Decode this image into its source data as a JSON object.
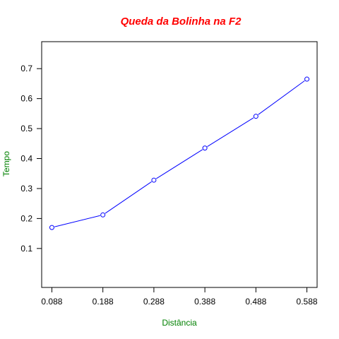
{
  "chart_data": {
    "type": "line",
    "title": "Queda da Bolinha na F2",
    "xlabel": "Distância",
    "ylabel": "Tempo",
    "x": [
      0.088,
      0.188,
      0.288,
      0.388,
      0.488,
      0.588
    ],
    "x_tick_labels": [
      "0.088",
      "0.188",
      "0.288",
      "0.388",
      "0.488",
      "0.588"
    ],
    "y_ticks": [
      0.1,
      0.2,
      0.3,
      0.4,
      0.5,
      0.6,
      0.7
    ],
    "y_tick_labels": [
      "0.1",
      "0.2",
      "0.3",
      "0.4",
      "0.5",
      "0.6",
      "0.7"
    ],
    "xlim": [
      0.068,
      0.608
    ],
    "ylim": [
      -0.03,
      0.79
    ],
    "series": [
      {
        "values": [
          0.17,
          0.212,
          0.328,
          0.435,
          0.541,
          0.665
        ]
      }
    ],
    "grid": false,
    "colors": {
      "title": "#ff0000",
      "axis_labels": "#008000",
      "series": "#0000ff",
      "axes": "#000000"
    }
  }
}
